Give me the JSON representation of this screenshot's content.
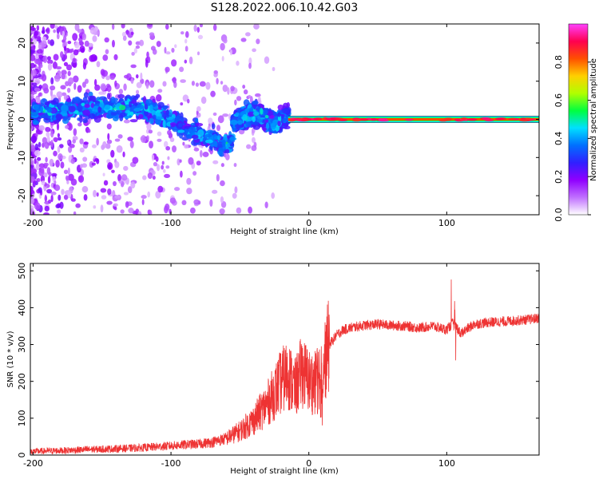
{
  "title": "S128.2022.006.10.42.G03",
  "chart_data": [
    {
      "type": "heatmap",
      "xlabel": "Height of straight line (km)",
      "ylabel": "Frequency (Hz)",
      "xlim": [
        -202,
        167
      ],
      "ylim": [
        -25,
        25
      ],
      "xticks": [
        -200,
        -100,
        0,
        100
      ],
      "yticks": [
        -20,
        -10,
        0,
        10,
        20
      ],
      "colorbar": {
        "label": "Normalized spectral amplitude",
        "range": [
          0,
          1
        ],
        "ticks": [
          "0.0",
          "0.2",
          "0.4",
          "0.6",
          "0.8"
        ],
        "colors": [
          "#ffffff",
          "#c070ff",
          "#9000ff",
          "#3020ff",
          "#0070ff",
          "#00e0ff",
          "#00ff40",
          "#b0ff00",
          "#ffd000",
          "#ff5000",
          "#ff0050",
          "#ff40ff"
        ]
      },
      "features": [
        {
          "name": "noise",
          "x_range": [
            -202,
            -25
          ],
          "freq_range": [
            -25,
            25
          ],
          "amplitude": 0.1
        },
        {
          "name": "descending arc",
          "x": [
            -200,
            -150,
            -120,
            -100,
            -80,
            -60,
            -55
          ],
          "freq": [
            2,
            3,
            3,
            0,
            -4,
            -7,
            -5
          ],
          "amplitude": 0.3
        },
        {
          "name": "second arc",
          "x": [
            -55,
            -45,
            -35,
            -25,
            -15
          ],
          "freq": [
            -1,
            1,
            1,
            -1,
            1
          ],
          "amplitude": 0.3
        },
        {
          "name": "direct signal",
          "x_range": [
            -15,
            167
          ],
          "freq": 0,
          "amplitude": 0.9
        }
      ]
    },
    {
      "type": "line",
      "xlabel": "Height of straight line (km)",
      "ylabel": "SNR (10 * v/v)",
      "xlim": [
        -202,
        167
      ],
      "ylim": [
        0,
        520
      ],
      "xticks": [
        -200,
        -100,
        0,
        100
      ],
      "yticks": [
        0,
        100,
        200,
        300,
        400,
        500
      ],
      "color": "#ee3333",
      "x": [
        -200,
        -180,
        -160,
        -140,
        -120,
        -100,
        -90,
        -80,
        -70,
        -60,
        -50,
        -40,
        -30,
        -20,
        -15,
        -10,
        -5,
        0,
        5,
        10,
        15,
        20,
        25,
        30,
        40,
        50,
        60,
        70,
        80,
        90,
        100,
        105,
        110,
        120,
        130,
        140,
        150,
        160,
        167
      ],
      "values": [
        10,
        12,
        15,
        17,
        20,
        25,
        28,
        30,
        35,
        45,
        65,
        95,
        140,
        200,
        220,
        180,
        230,
        200,
        195,
        245,
        300,
        325,
        340,
        345,
        352,
        355,
        352,
        350,
        345,
        350,
        340,
        360,
        330,
        355,
        360,
        362,
        365,
        368,
        372
      ]
    }
  ]
}
